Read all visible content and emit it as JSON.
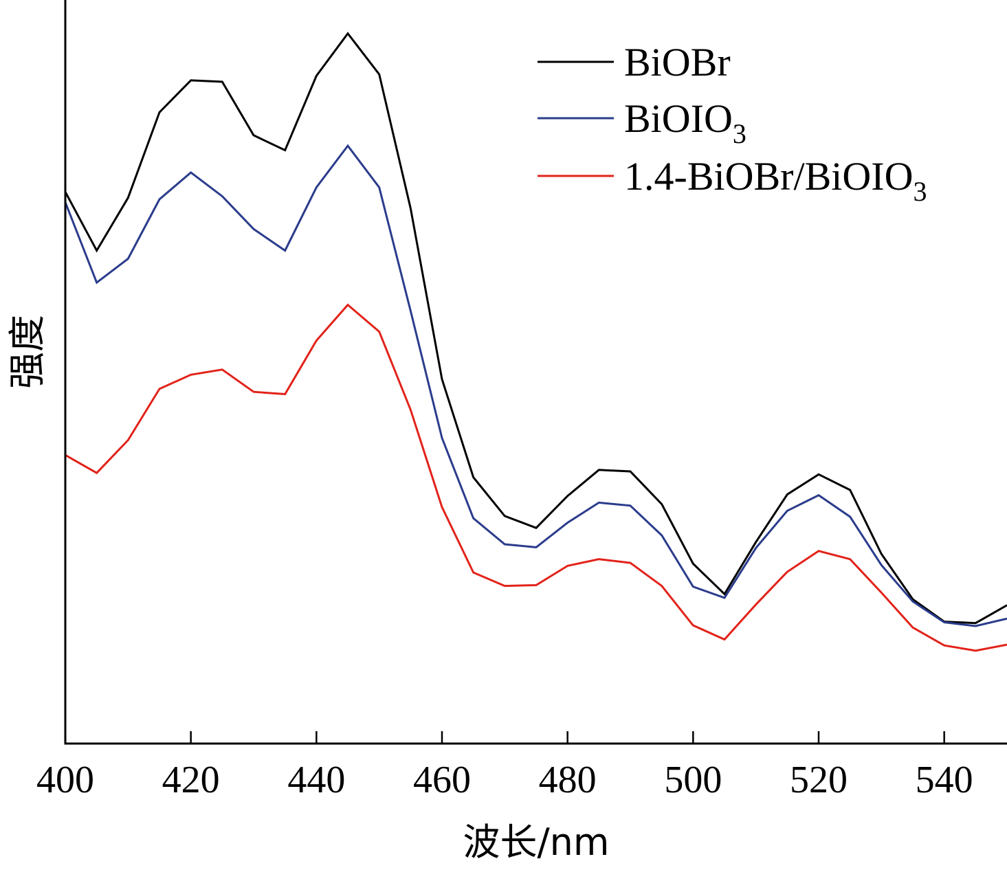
{
  "chart_data": {
    "type": "line",
    "xlabel": "波长/nm",
    "ylabel": "强度",
    "xlim": [
      400,
      550
    ],
    "ylim": [
      0,
      100
    ],
    "xticks": [
      400,
      420,
      440,
      460,
      480,
      500,
      520,
      540
    ],
    "grid": false,
    "legend_position": "top-right",
    "x": [
      400,
      405,
      410,
      415,
      420,
      425,
      430,
      435,
      440,
      445,
      450,
      455,
      460,
      465,
      470,
      475,
      480,
      485,
      490,
      495,
      500,
      505,
      510,
      515,
      520,
      525,
      530,
      535,
      540,
      545,
      550
    ],
    "series": [
      {
        "name": "BiOBr",
        "name_main": "BiOBr",
        "name_sub": "",
        "color": "#000000",
        "values": [
          74.2,
          66.3,
          73.4,
          84.9,
          89.2,
          89.0,
          81.8,
          79.8,
          89.8,
          95.5,
          90.0,
          72.0,
          49.0,
          35.8,
          30.6,
          29.0,
          33.3,
          36.8,
          36.6,
          32.2,
          24.2,
          20.1,
          27.1,
          33.5,
          36.2,
          34.1,
          25.5,
          19.4,
          16.4,
          16.2,
          18.6
        ]
      },
      {
        "name": "BiOIO3",
        "name_main": "BiOIO",
        "name_sub": "3",
        "color": "#2b3c8c",
        "values": [
          72.8,
          62.0,
          65.2,
          73.2,
          76.8,
          73.6,
          69.2,
          66.3,
          74.8,
          80.4,
          74.8,
          58.2,
          41.1,
          30.3,
          26.8,
          26.4,
          29.7,
          32.4,
          32.0,
          28.0,
          21.1,
          19.6,
          26.3,
          31.3,
          33.4,
          30.5,
          24.0,
          19.1,
          16.3,
          15.8,
          16.8
        ]
      },
      {
        "name": "1.4-BiOBr/BiOIO3",
        "name_main": "1.4-BiOBr/BiOIO",
        "name_sub": "3",
        "color": "#e2231a",
        "values": [
          38.8,
          36.4,
          40.8,
          47.7,
          49.6,
          50.3,
          47.3,
          47.0,
          54.2,
          59.0,
          55.4,
          44.9,
          31.8,
          23.0,
          21.2,
          21.3,
          23.9,
          24.8,
          24.3,
          21.2,
          15.9,
          14.0,
          18.7,
          23.1,
          25.9,
          24.8,
          20.3,
          15.6,
          13.2,
          12.5,
          13.3
        ]
      }
    ]
  }
}
